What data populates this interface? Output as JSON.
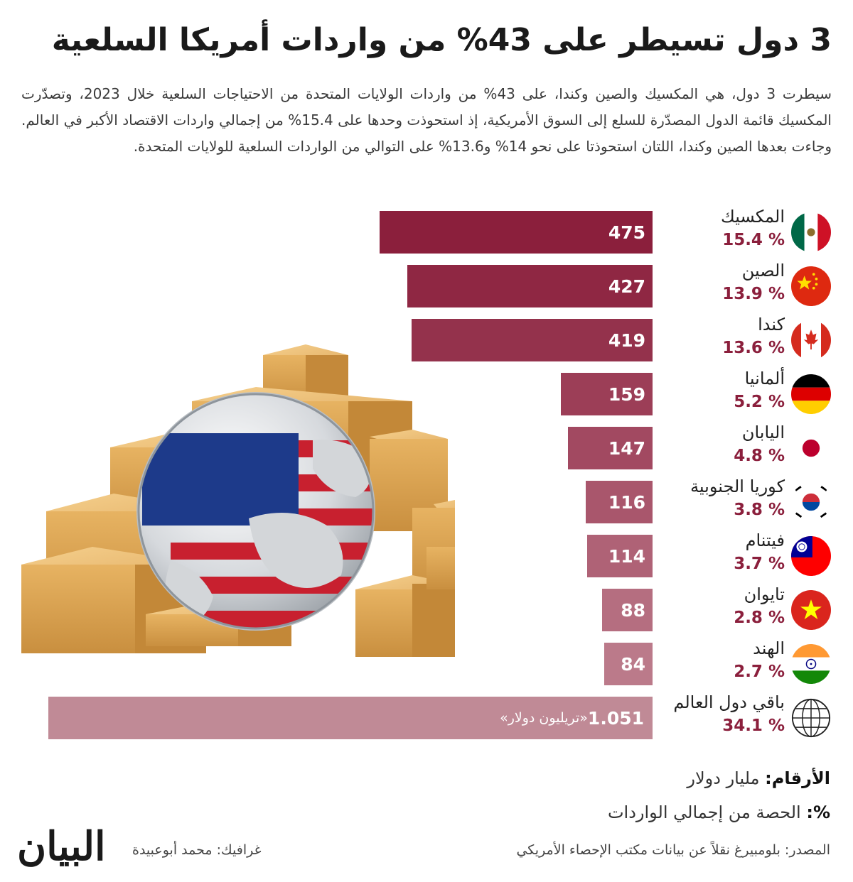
{
  "header": {
    "title": "3 دول تسيطر على 43% من واردات أمريكا السلعية",
    "intro": "سيطرت 3 دول، هي المكسيك والصين وكندا، على 43% من واردات الولايات المتحدة من الاحتياجات السلعية خلال 2023، وتصدّرت المكسيك قائمة الدول المصدّرة للسلع إلى السوق الأمريكية، إذ استحوذت وحدها على 15.4% من إجمالي واردات الاقتصاد الأكبر في العالم. وجاءت بعدها الصين وكندا، اللتان استحوذتا على نحو 14% و13.6% على التوالي من الواردات السلعية للولايات المتحدة."
  },
  "chart_data": {
    "type": "bar",
    "orientation": "horizontal",
    "categories": [
      "المكسيك",
      "الصين",
      "كندا",
      "ألمانيا",
      "اليابان",
      "كوريا الجنوبية",
      "فيتنام",
      "تايوان",
      "الهند",
      "باقي دول العالم"
    ],
    "series": [
      {
        "values": [
          475,
          427,
          419,
          159,
          147,
          116,
          114,
          88,
          84,
          1051
        ]
      }
    ],
    "value_labels": [
      "475",
      "427",
      "419",
      "159",
      "147",
      "116",
      "114",
      "88",
      "84",
      "1.051"
    ],
    "last_bar_unit": "«تريليون دولار»",
    "shares": [
      "% 15.4",
      "% 13.9",
      "% 13.6",
      "% 5.2",
      "% 4.8",
      "% 3.8",
      "% 3.7",
      "% 2.8",
      "% 2.7",
      "% 34.1"
    ],
    "flag_icons": [
      "flag-mexico-icon",
      "flag-china-icon",
      "flag-canada-icon",
      "flag-germany-icon",
      "flag-japan-icon",
      "flag-south-korea-icon",
      "flag-taiwan-icon",
      "flag-vietnam-icon",
      "flag-india-icon",
      "globe-icon"
    ],
    "bar_colors": [
      "#8b1f3c",
      "#8f2743",
      "#94324c",
      "#9c3e57",
      "#a24961",
      "#a9566c",
      "#af6276",
      "#b56e80",
      "#bb7a8a",
      "#c08a96"
    ],
    "percent_color": "#8b1f3c",
    "xlim": [
      0,
      1051
    ],
    "grid": false,
    "legend": "none"
  },
  "legend": {
    "figures_label": "الأرقام:",
    "figures_value": "مليار دولار",
    "percent_label": "%:",
    "percent_value": "الحصة من إجمالي الواردات"
  },
  "footer": {
    "source": "المصدر: بلومبيرغ نقلاً عن بيانات مكتب الإحصاء الأمريكي",
    "graphic": "غرافيك: محمد أبوعبيدة",
    "logo": "البيان"
  }
}
